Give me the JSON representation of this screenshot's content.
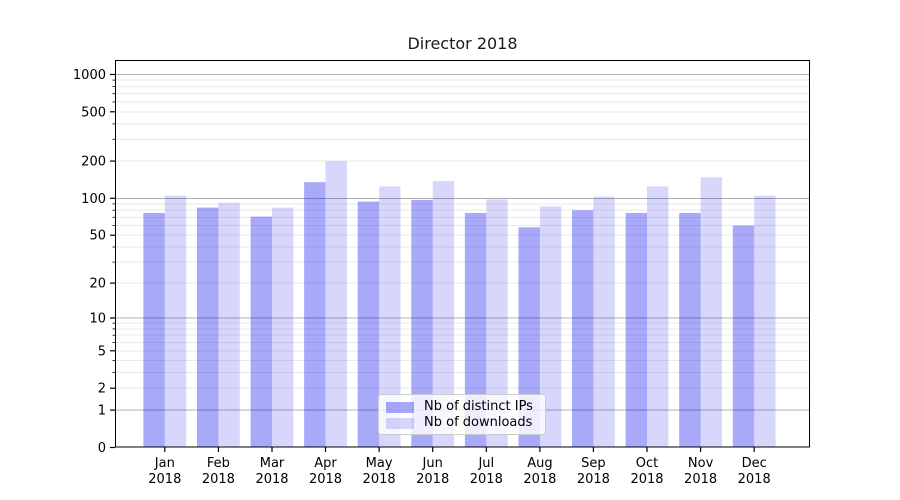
{
  "chart_data": {
    "type": "bar",
    "title": "Director 2018",
    "categories": [
      "Jan",
      "Feb",
      "Mar",
      "Apr",
      "May",
      "Jun",
      "Jul",
      "Aug",
      "Sep",
      "Oct",
      "Nov",
      "Dec"
    ],
    "category_year": "2018",
    "series": [
      {
        "name": "Nb of distinct IPs",
        "color": "#a9a9f3",
        "fill": "rgba(8,8,238,0.35)",
        "values": [
          76,
          84,
          71,
          135,
          94,
          97,
          76,
          58,
          80,
          76,
          76,
          60
        ]
      },
      {
        "name": "Nb of downloads",
        "color": "#d7d7fa",
        "fill": "rgba(8,8,238,0.16)",
        "values": [
          105,
          92,
          84,
          200,
          125,
          138,
          98,
          86,
          103,
          125,
          148,
          105
        ]
      }
    ],
    "yscale": "log1p",
    "y_ticks": [
      0,
      1,
      2,
      5,
      10,
      20,
      50,
      100,
      200,
      500,
      1000
    ],
    "y_minor_ticks": [
      3,
      4,
      6,
      7,
      8,
      9,
      30,
      40,
      60,
      70,
      80,
      90,
      300,
      400,
      600,
      700,
      800,
      900
    ],
    "y_major_gridlines": [
      1,
      10,
      100,
      1000
    ],
    "ylim": [
      0,
      1300
    ],
    "xlabel": "",
    "ylabel": "",
    "grid": "horizontal",
    "legend_position": "lower center",
    "colors": {
      "major_grid": "#b0b0b0",
      "minor_grid": "#eaeaea",
      "axis": "#000000",
      "tick_label": "#000000"
    }
  }
}
